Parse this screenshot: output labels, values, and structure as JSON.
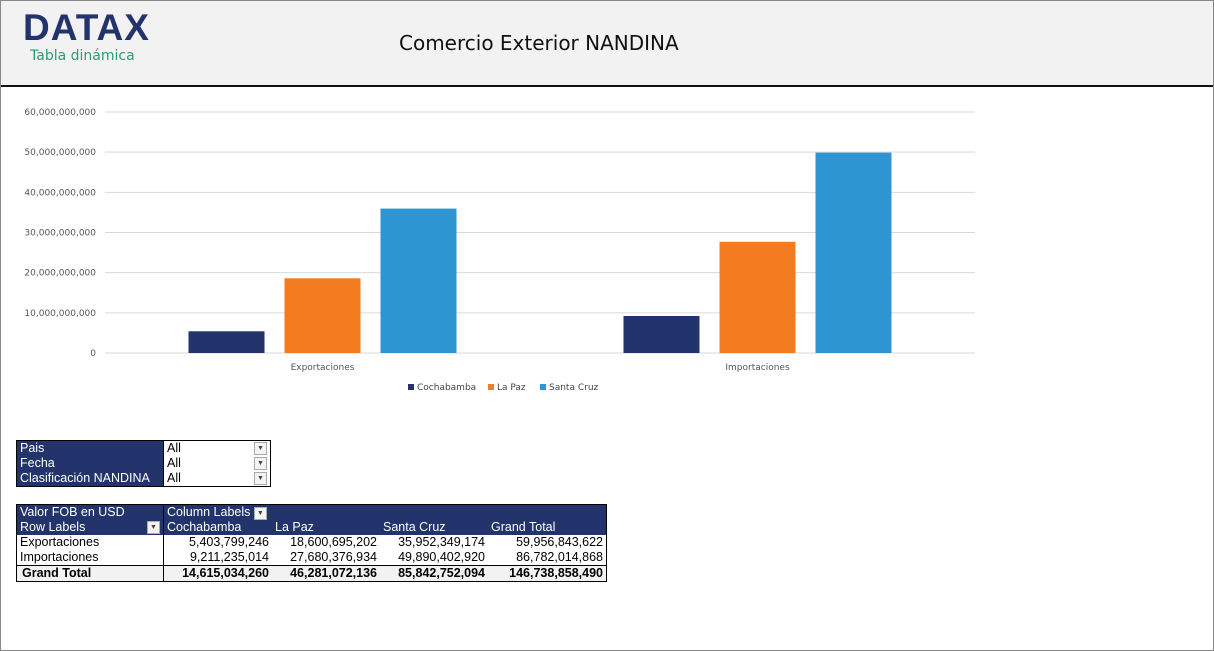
{
  "header": {
    "logo": "DATAX",
    "subtitle": "Tabla dinámica",
    "title": "Comercio Exterior NANDINA"
  },
  "colors": {
    "Cochabamba": "#22346b",
    "La Paz": "#f47c20",
    "Santa Cruz": "#2e95d3"
  },
  "chart_data": {
    "type": "bar",
    "categories": [
      "Exportaciones",
      "Importaciones"
    ],
    "series": [
      {
        "name": "Cochabamba",
        "values": [
          5403799246,
          9211235014
        ]
      },
      {
        "name": "La Paz",
        "values": [
          18600695202,
          27680376934
        ]
      },
      {
        "name": "Santa Cruz",
        "values": [
          35952349174,
          49890402920
        ]
      }
    ],
    "ylim": [
      0,
      60000000000
    ],
    "yticks": [
      "0",
      "10,000,000,000",
      "20,000,000,000",
      "30,000,000,000",
      "40,000,000,000",
      "50,000,000,000",
      "60,000,000,000"
    ],
    "grid": true,
    "legend": "bottom"
  },
  "filters": [
    {
      "label": "Pais",
      "value": "All"
    },
    {
      "label": "Fecha",
      "value": "All"
    },
    {
      "label": "Clasificación NANDINA",
      "value": "All"
    }
  ],
  "pivot": {
    "values_label": "Valor FOB en USD",
    "column_labels": "Column Labels",
    "row_labels": "Row Labels",
    "columns": [
      "Cochabamba",
      "La Paz",
      "Santa Cruz",
      "Grand Total"
    ],
    "rows": [
      {
        "label": "Exportaciones",
        "values": [
          "5,403,799,246",
          "18,600,695,202",
          "35,952,349,174",
          "59,956,843,622"
        ]
      },
      {
        "label": "Importaciones",
        "values": [
          "9,211,235,014",
          "27,680,376,934",
          "49,890,402,920",
          "86,782,014,868"
        ]
      }
    ],
    "total": {
      "label": "Grand Total",
      "values": [
        "14,615,034,260",
        "46,281,072,136",
        "85,842,752,094",
        "146,738,858,490"
      ]
    }
  }
}
